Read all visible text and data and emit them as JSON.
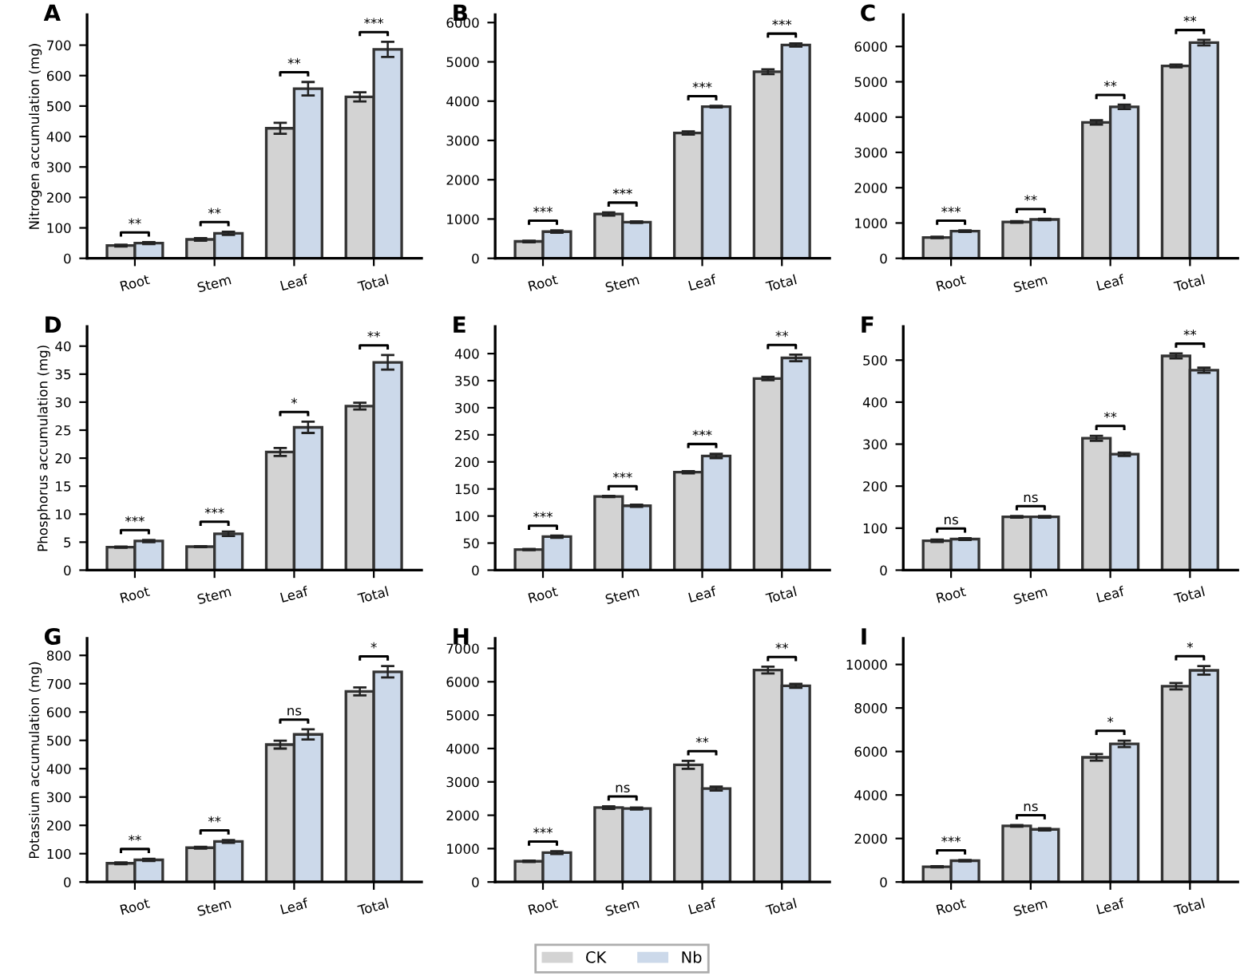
{
  "chart_data": [
    {
      "type": "bar",
      "title": "A",
      "ylabel": "Nitrogen accumulation (mg)",
      "categories": [
        "Root",
        "Stem",
        "Leaf",
        "Total"
      ],
      "ylim": [
        0,
        800
      ],
      "yticks": [
        0,
        100,
        200,
        300,
        400,
        500,
        600,
        700
      ],
      "legend": "bottom",
      "series": [
        {
          "name": "CK",
          "color": "#d3d3d3",
          "values": [
            42,
            62,
            427,
            530
          ],
          "errors": [
            3,
            4,
            18,
            15
          ]
        },
        {
          "name": "Nb",
          "color": "#ccd9ea",
          "values": [
            50,
            82,
            557,
            686
          ],
          "errors": [
            3,
            5,
            22,
            25
          ]
        }
      ],
      "annotations": [
        "**",
        "**",
        "**",
        "***"
      ]
    },
    {
      "type": "bar",
      "title": "B",
      "categories": [
        "Root",
        "Stem",
        "Leaf",
        "Total"
      ],
      "ylim": [
        0,
        6200
      ],
      "yticks": [
        0,
        1000,
        2000,
        3000,
        4000,
        5000,
        6000
      ],
      "series": [
        {
          "color": "#d3d3d3",
          "values": [
            430,
            1130,
            3190,
            4750
          ],
          "errors": [
            20,
            40,
            40,
            60
          ]
        },
        {
          "color": "#ccd9ea",
          "values": [
            680,
            920,
            3860,
            5430
          ],
          "errors": [
            30,
            20,
            20,
            40
          ]
        }
      ],
      "annotations": [
        "***",
        "***",
        "***",
        "***"
      ]
    },
    {
      "type": "bar",
      "title": "C",
      "categories": [
        "Root",
        "Stem",
        "Leaf",
        "Total"
      ],
      "ylim": [
        0,
        6900
      ],
      "yticks": [
        0,
        1000,
        2000,
        3000,
        4000,
        5000,
        6000
      ],
      "series": [
        {
          "color": "#d3d3d3",
          "values": [
            590,
            1030,
            3850,
            5450
          ],
          "errors": [
            20,
            20,
            60,
            40
          ]
        },
        {
          "color": "#ccd9ea",
          "values": [
            770,
            1100,
            4290,
            6110
          ],
          "errors": [
            20,
            20,
            60,
            80
          ]
        }
      ],
      "annotations": [
        "***",
        "**",
        "**",
        "**"
      ]
    },
    {
      "type": "bar",
      "title": "D",
      "ylabel": "Phosphorus accumulation (mg)",
      "categories": [
        "Root",
        "Stem",
        "Leaf",
        "Total"
      ],
      "ylim": [
        0,
        43.5
      ],
      "yticks": [
        0,
        5,
        10,
        15,
        20,
        25,
        30,
        35,
        40
      ],
      "series": [
        {
          "color": "#d3d3d3",
          "values": [
            4.1,
            4.2,
            21.1,
            29.3
          ],
          "errors": [
            0.1,
            0.1,
            0.7,
            0.6
          ]
        },
        {
          "color": "#ccd9ea",
          "values": [
            5.2,
            6.5,
            25.5,
            37.1
          ],
          "errors": [
            0.2,
            0.4,
            1.0,
            1.3
          ]
        }
      ],
      "annotations": [
        "***",
        "***",
        "*",
        "**"
      ]
    },
    {
      "type": "bar",
      "title": "E",
      "categories": [
        "Root",
        "Stem",
        "Leaf",
        "Total"
      ],
      "ylim": [
        0,
        450
      ],
      "yticks": [
        0,
        50,
        100,
        150,
        200,
        250,
        300,
        350,
        400
      ],
      "series": [
        {
          "color": "#d3d3d3",
          "values": [
            38,
            136,
            181,
            354
          ],
          "errors": [
            1,
            1,
            2,
            3
          ]
        },
        {
          "color": "#ccd9ea",
          "values": [
            62,
            119,
            211,
            392
          ],
          "errors": [
            2,
            2,
            4,
            6
          ]
        }
      ],
      "annotations": [
        "***",
        "***",
        "***",
        "**"
      ]
    },
    {
      "type": "bar",
      "title": "F",
      "categories": [
        "Root",
        "Stem",
        "Leaf",
        "Total"
      ],
      "ylim": [
        0,
        580
      ],
      "yticks": [
        0,
        100,
        200,
        300,
        400,
        500
      ],
      "series": [
        {
          "color": "#d3d3d3",
          "values": [
            70,
            127,
            314,
            510
          ],
          "errors": [
            3,
            2,
            6,
            6
          ]
        },
        {
          "color": "#ccd9ea",
          "values": [
            74,
            127,
            276,
            476
          ],
          "errors": [
            2,
            2,
            4,
            6
          ]
        }
      ],
      "annotations": [
        "ns",
        "ns",
        "**",
        "**"
      ]
    },
    {
      "type": "bar",
      "title": "G",
      "ylabel": "Potassium accumulation (mg)",
      "categories": [
        "Root",
        "Stem",
        "Leaf",
        "Total"
      ],
      "ylim": [
        0,
        860
      ],
      "yticks": [
        0,
        100,
        200,
        300,
        400,
        500,
        600,
        700,
        800
      ],
      "series": [
        {
          "color": "#d3d3d3",
          "values": [
            66,
            121,
            485,
            673
          ],
          "errors": [
            3,
            3,
            14,
            14
          ]
        },
        {
          "color": "#ccd9ea",
          "values": [
            78,
            143,
            521,
            742
          ],
          "errors": [
            4,
            5,
            18,
            20
          ]
        }
      ],
      "annotations": [
        "**",
        "**",
        "ns",
        "*"
      ]
    },
    {
      "type": "bar",
      "title": "H",
      "categories": [
        "Root",
        "Stem",
        "Leaf",
        "Total"
      ],
      "ylim": [
        0,
        7300
      ],
      "yticks": [
        0,
        1000,
        2000,
        3000,
        4000,
        5000,
        6000,
        7000
      ],
      "series": [
        {
          "color": "#d3d3d3",
          "values": [
            620,
            2230,
            3510,
            6350
          ],
          "errors": [
            20,
            40,
            120,
            100
          ]
        },
        {
          "color": "#ccd9ea",
          "values": [
            880,
            2200,
            2800,
            5880
          ],
          "errors": [
            40,
            30,
            60,
            60
          ]
        }
      ],
      "annotations": [
        "***",
        "ns",
        "**",
        "**"
      ]
    },
    {
      "type": "bar",
      "title": "I",
      "categories": [
        "Root",
        "Stem",
        "Leaf",
        "Total"
      ],
      "ylim": [
        0,
        11200
      ],
      "yticks": [
        0,
        2000,
        4000,
        6000,
        8000,
        10000
      ],
      "series": [
        {
          "color": "#d3d3d3",
          "values": [
            700,
            2580,
            5730,
            9000
          ],
          "errors": [
            30,
            40,
            150,
            150
          ]
        },
        {
          "color": "#ccd9ea",
          "values": [
            980,
            2420,
            6350,
            9730
          ],
          "errors": [
            30,
            50,
            150,
            200
          ]
        }
      ],
      "annotations": [
        "***",
        "ns",
        "*",
        "*"
      ]
    }
  ]
}
